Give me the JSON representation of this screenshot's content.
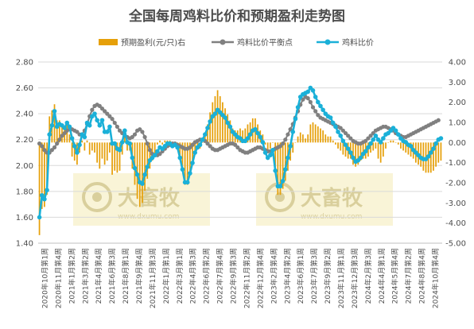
{
  "chart_data": {
    "type": "bar+line",
    "title": "全国每周鸡料比价和预期盈利走势图",
    "legend": [
      "预期盈利(元/只)右",
      "鸡料比价平衡点",
      "鸡料比价"
    ],
    "legend_position": "top",
    "y_left": {
      "min": 1.4,
      "max": 2.8,
      "step": 0.2
    },
    "y_right": {
      "min": -5,
      "max": 4,
      "step": 1
    },
    "y_left_ticks": [
      "1.40",
      "1.60",
      "1.80",
      "2.00",
      "2.20",
      "2.40",
      "2.60",
      "2.80"
    ],
    "y_right_ticks": [
      "-5.00",
      "-4.00",
      "-3.00",
      "-2.00",
      "-1.00",
      "0.00",
      "1.00",
      "2.00",
      "3.00",
      "4.00"
    ],
    "x_labels": [
      "2020年10月第1周",
      "2020年11月第4周",
      "2021年1月第2周",
      "2021年3月第2周",
      "2021年4月第4周",
      "2021年6月第3周",
      "2021年8月第1周",
      "2021年9月第4周",
      "2021年11月第3周",
      "2022年1月第1周",
      "2022年3月第1周",
      "2022年4月第3周",
      "2022年6月第2周",
      "2022年7月第4周",
      "2022年9月第3周",
      "2022年11月第2周",
      "2022年12月第4周",
      "2023年2月第4周",
      "2023年4月第2周",
      "2023年6月第1周",
      "2023年7月第3周",
      "2023年9月第2周",
      "2023年11月第1周",
      "2023年12月第3周",
      "2024年2月第3周",
      "2024年4月第1周",
      "2024年5月第4周",
      "2024年7月第2周",
      "2024年8月第4周",
      "2024年10月第4周"
    ],
    "grid": true,
    "series": [
      {
        "name": "鸡料比价",
        "axis": "left",
        "color": "#1ab0d8",
        "values": [
          1.6,
          1.77,
          1.74,
          1.81,
          2.24,
          2.31,
          2.42,
          2.3,
          2.32,
          2.31,
          2.29,
          2.33,
          2.3,
          2.21,
          2.15,
          2.1,
          2.16,
          2.24,
          2.22,
          2.33,
          2.31,
          2.38,
          2.4,
          2.35,
          2.31,
          2.35,
          2.26,
          2.26,
          2.3,
          2.17,
          2.17,
          2.13,
          2.12,
          2.18,
          2.27,
          2.18,
          2.17,
          2.06,
          1.98,
          1.93,
          1.87,
          1.86,
          1.93,
          1.99,
          2.04,
          2.06,
          2.08,
          2.11,
          2.14,
          2.13,
          2.15,
          2.17,
          2.17,
          2.15,
          2.16,
          2.14,
          2.06,
          1.97,
          1.87,
          1.87,
          1.94,
          2.02,
          2.1,
          2.14,
          2.16,
          2.2,
          2.24,
          2.29,
          2.34,
          2.38,
          2.4,
          2.43,
          2.41,
          2.39,
          2.37,
          2.33,
          2.3,
          2.26,
          2.24,
          2.22,
          2.21,
          2.19,
          2.19,
          2.21,
          2.24,
          2.27,
          2.28,
          2.25,
          2.22,
          2.18,
          2.1,
          2.06,
          2.08,
          2.12,
          1.96,
          1.84,
          1.84,
          1.88,
          1.97,
          2.06,
          2.15,
          2.26,
          2.36,
          2.45,
          2.53,
          2.55,
          2.56,
          2.57,
          2.6,
          2.58,
          2.53,
          2.49,
          2.46,
          2.43,
          2.4,
          2.38,
          2.37,
          2.33,
          2.3,
          2.26,
          2.23,
          2.19,
          2.16,
          2.13,
          2.1,
          2.06,
          2.03,
          2.04,
          2.06,
          2.09,
          2.11,
          2.14,
          2.17,
          2.2,
          2.23,
          2.2,
          2.18,
          2.21,
          2.24,
          2.25,
          2.27,
          2.29,
          2.27,
          2.24,
          2.21,
          2.19,
          2.18,
          2.16,
          2.15,
          2.12,
          2.1,
          2.08,
          2.06,
          2.05,
          2.05,
          2.07,
          2.1,
          2.13,
          2.17,
          2.2,
          2.21
        ]
      },
      {
        "name": "鸡料比价平衡点",
        "axis": "left",
        "color": "#808080",
        "values": [
          2.17,
          2.15,
          2.12,
          2.1,
          2.1,
          2.12,
          2.14,
          2.17,
          2.2,
          2.23,
          2.25,
          2.27,
          2.28,
          2.28,
          2.27,
          2.26,
          2.24,
          2.24,
          2.27,
          2.32,
          2.38,
          2.43,
          2.46,
          2.47,
          2.46,
          2.44,
          2.42,
          2.4,
          2.38,
          2.36,
          2.33,
          2.3,
          2.27,
          2.25,
          2.23,
          2.22,
          2.21,
          2.22,
          2.24,
          2.27,
          2.28,
          2.26,
          2.22,
          2.17,
          2.12,
          2.09,
          2.08,
          2.08,
          2.09,
          2.11,
          2.13,
          2.15,
          2.16,
          2.17,
          2.17,
          2.16,
          2.15,
          2.14,
          2.13,
          2.13,
          2.14,
          2.16,
          2.18,
          2.19,
          2.2,
          2.2,
          2.19,
          2.17,
          2.15,
          2.13,
          2.12,
          2.12,
          2.13,
          2.14,
          2.15,
          2.16,
          2.17,
          2.17,
          2.16,
          2.14,
          2.12,
          2.11,
          2.1,
          2.1,
          2.11,
          2.12,
          2.13,
          2.14,
          2.14,
          2.13,
          2.12,
          2.11,
          2.11,
          2.12,
          2.13,
          2.14,
          2.15,
          2.17,
          2.2,
          2.24,
          2.28,
          2.32,
          2.37,
          2.42,
          2.47,
          2.51,
          2.53,
          2.52,
          2.49,
          2.45,
          2.42,
          2.39,
          2.37,
          2.36,
          2.35,
          2.34,
          2.33,
          2.32,
          2.31,
          2.3,
          2.29,
          2.27,
          2.25,
          2.23,
          2.21,
          2.19,
          2.18,
          2.17,
          2.17,
          2.18,
          2.19,
          2.21,
          2.23,
          2.25,
          2.27,
          2.28,
          2.29,
          2.3,
          2.3,
          2.29,
          2.28,
          2.27,
          2.25,
          2.24,
          2.23,
          2.22,
          2.22,
          2.23,
          2.24,
          2.25,
          2.26,
          2.27,
          2.28,
          2.29,
          2.3,
          2.31,
          2.32,
          2.33,
          2.34,
          2.35
        ]
      },
      {
        "name": "预期盈利(元/只)右",
        "axis": "right",
        "type": "bar",
        "color": "#e6a00a",
        "values": [
          -4.6,
          -3.3,
          -3.2,
          -2.6,
          1.3,
          1.6,
          1.9,
          1.1,
          1.1,
          0.9,
          0.7,
          0.9,
          0.4,
          -0.7,
          -0.9,
          -1.1,
          -0.5,
          0.1,
          -0.4,
          0.1,
          -0.6,
          -0.4,
          -0.5,
          -1.0,
          -1.3,
          -0.8,
          -1.1,
          -0.9,
          -0.5,
          -1.6,
          -1.4,
          -1.5,
          -1.4,
          -0.6,
          0.3,
          -0.4,
          -0.4,
          -1.3,
          -2.1,
          -2.8,
          -3.2,
          -3.0,
          -2.4,
          -1.8,
          -1.3,
          -0.9,
          -0.6,
          -0.1,
          0.1,
          -0.1,
          0.1,
          0.1,
          0.1,
          -0.2,
          0.0,
          -0.1,
          -0.7,
          -1.4,
          -2.1,
          -2.1,
          -1.6,
          -1.1,
          -0.6,
          -0.3,
          -0.3,
          0.0,
          0.4,
          0.9,
          1.5,
          2.0,
          2.3,
          2.6,
          2.3,
          2.0,
          1.7,
          1.4,
          1.1,
          0.7,
          0.6,
          0.6,
          0.7,
          0.6,
          0.7,
          0.9,
          1.0,
          1.2,
          1.2,
          0.9,
          0.6,
          0.4,
          -0.1,
          -0.5,
          -0.3,
          0.0,
          -1.4,
          -2.6,
          -2.6,
          -2.3,
          -1.9,
          -1.4,
          -0.9,
          -0.5,
          0.0,
          0.3,
          0.5,
          0.4,
          0.2,
          0.4,
          0.9,
          1.0,
          0.9,
          0.8,
          0.7,
          0.6,
          0.4,
          0.3,
          0.3,
          0.1,
          -0.1,
          -0.3,
          -0.4,
          -0.6,
          -0.7,
          -0.8,
          -0.8,
          -1.1,
          -1.2,
          -1.1,
          -0.9,
          -0.8,
          -0.8,
          -0.7,
          -0.5,
          -0.4,
          -0.3,
          -0.8,
          -1.0,
          -0.7,
          -0.3,
          0.0,
          0.1,
          0.1,
          0.0,
          -0.1,
          -0.3,
          -0.4,
          -0.5,
          -0.6,
          -0.7,
          -0.8,
          -1.0,
          -1.1,
          -1.2,
          -1.4,
          -1.5,
          -1.5,
          -1.5,
          -1.4,
          -1.2,
          -1.0,
          -0.9
        ]
      }
    ],
    "watermark": {
      "brand": "大畜牧",
      "site": "www.dxumu.com"
    }
  }
}
